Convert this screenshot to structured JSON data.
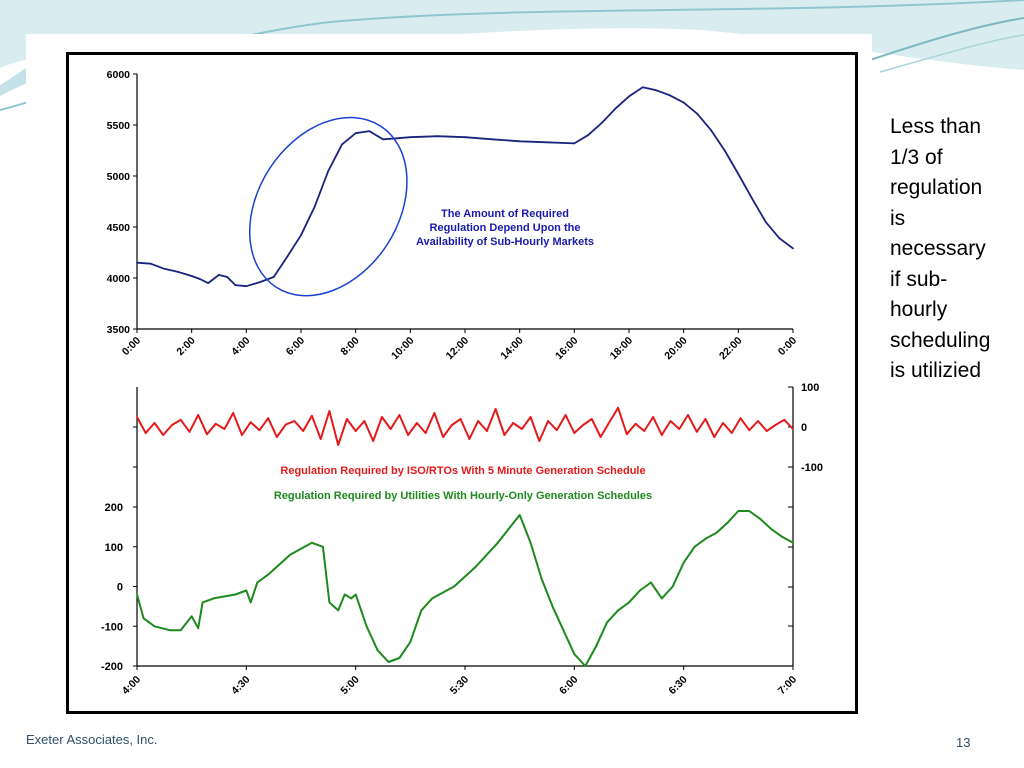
{
  "slide": {
    "side_note_lines": [
      "Less than",
      "1/3 of",
      "regulation",
      "is",
      "necessary",
      "if sub-",
      "hourly",
      "scheduling",
      "is utilizied"
    ],
    "footer_company": "Exeter Associates, Inc.",
    "page_number": "13",
    "colors": {
      "accent_teal": "#8fc6cf",
      "accent_light": "#d7ecef",
      "footer_text": "#2f4f6a"
    }
  },
  "chart_data": [
    {
      "type": "line",
      "title": "",
      "annotation_lines": [
        "The Amount of Required",
        "Regulation Depend Upon the",
        "Availability of Sub-Hourly Markets"
      ],
      "annotation_color": "#1a1aaa",
      "xlabel": "",
      "ylabel": "",
      "x_ticks": [
        "0:00",
        "2:00",
        "4:00",
        "6:00",
        "8:00",
        "10:00",
        "12:00",
        "14:00",
        "16:00",
        "18:00",
        "20:00",
        "22:00",
        "0:00"
      ],
      "y_ticks": [
        "3500",
        "4000",
        "4500",
        "5000",
        "5500",
        "6000"
      ],
      "ylim": [
        3500,
        6000
      ],
      "xlim_hours": [
        0,
        24
      ],
      "series": [
        {
          "color": "#1a237e",
          "x_hours": [
            0,
            0.5,
            1,
            1.5,
            2,
            2.3,
            2.6,
            3,
            3.3,
            3.6,
            4,
            4.5,
            5,
            5.5,
            6,
            6.5,
            7,
            7.5,
            8,
            8.5,
            9,
            9.5,
            10,
            11,
            12,
            13,
            14,
            15,
            16,
            16.5,
            17,
            17.5,
            18,
            18.5,
            19,
            19.5,
            20,
            20.5,
            21,
            21.5,
            22,
            22.5,
            23,
            23.5,
            24
          ],
          "values": [
            4150,
            4140,
            4090,
            4060,
            4020,
            3990,
            3950,
            4030,
            4010,
            3930,
            3920,
            3960,
            4010,
            4210,
            4420,
            4700,
            5050,
            5310,
            5420,
            5440,
            5360,
            5370,
            5380,
            5390,
            5380,
            5360,
            5340,
            5330,
            5320,
            5400,
            5520,
            5660,
            5780,
            5870,
            5840,
            5790,
            5720,
            5610,
            5450,
            5250,
            5020,
            4780,
            4550,
            4390,
            4290
          ]
        }
      ],
      "highlight_ellipse_color": "#1a3fd0"
    },
    {
      "type": "line",
      "title": "",
      "xlabel": "",
      "ylabel": "",
      "x_ticks": [
        "4:00",
        "4:30",
        "5:00",
        "5:30",
        "6:00",
        "6:30",
        "7:00"
      ],
      "xlim_hours": [
        4,
        7
      ],
      "y_ticks_left": [
        "-200",
        "-100",
        "0",
        "100",
        "200"
      ],
      "y_ticks_right": [
        "-100",
        "0",
        "100"
      ],
      "ylim_left": [
        -200,
        200
      ],
      "ylim_right": [
        -100,
        100
      ],
      "legend_entries": [
        {
          "text": "Regulation Required by ISO/RTOs With 5 Minute Generation Schedule",
          "color": "#e31b1b"
        },
        {
          "text": "Regulation Required by Utilities With Hourly-Only Generation Schedules",
          "color": "#1e8a1e"
        }
      ],
      "series": [
        {
          "color": "#e31b1b",
          "axis": "right",
          "x_hours": [
            4.0,
            4.04,
            4.08,
            4.12,
            4.16,
            4.2,
            4.24,
            4.28,
            4.32,
            4.36,
            4.4,
            4.44,
            4.48,
            4.52,
            4.56,
            4.6,
            4.64,
            4.68,
            4.72,
            4.76,
            4.8,
            4.84,
            4.88,
            4.92,
            4.96,
            5.0,
            5.04,
            5.08,
            5.12,
            5.16,
            5.2,
            5.24,
            5.28,
            5.32,
            5.36,
            5.4,
            5.44,
            5.48,
            5.52,
            5.56,
            5.6,
            5.64,
            5.68,
            5.72,
            5.76,
            5.8,
            5.84,
            5.88,
            5.92,
            5.96,
            6.0,
            6.04,
            6.08,
            6.12,
            6.16,
            6.2,
            6.24,
            6.28,
            6.32,
            6.36,
            6.4,
            6.44,
            6.48,
            6.52,
            6.56,
            6.6,
            6.64,
            6.68,
            6.72,
            6.76,
            6.8,
            6.84,
            6.88,
            6.92,
            6.96,
            7.0
          ],
          "values": [
            25,
            -15,
            10,
            -20,
            5,
            18,
            -12,
            30,
            -18,
            8,
            -5,
            35,
            -20,
            12,
            -8,
            22,
            -25,
            6,
            15,
            -10,
            28,
            -30,
            40,
            -45,
            20,
            -10,
            15,
            -35,
            25,
            -5,
            30,
            -20,
            10,
            -15,
            35,
            -25,
            5,
            20,
            -30,
            15,
            -10,
            45,
            -20,
            10,
            -5,
            25,
            -35,
            15,
            -8,
            30,
            -15,
            5,
            20,
            -25,
            12,
            48,
            -18,
            8,
            -10,
            25,
            -20,
            15,
            -5,
            30,
            -12,
            20,
            -25,
            10,
            -15,
            22,
            -8,
            15,
            -10,
            5,
            18,
            -5
          ]
        },
        {
          "color": "#1e8a1e",
          "axis": "left",
          "x_hours": [
            4.0,
            4.03,
            4.08,
            4.15,
            4.2,
            4.25,
            4.28,
            4.3,
            4.35,
            4.45,
            4.5,
            4.52,
            4.55,
            4.6,
            4.7,
            4.8,
            4.85,
            4.88,
            4.92,
            4.95,
            4.98,
            5.0,
            5.05,
            5.1,
            5.15,
            5.2,
            5.25,
            5.3,
            5.35,
            5.45,
            5.55,
            5.65,
            5.7,
            5.75,
            5.8,
            5.85,
            5.9,
            5.95,
            6.0,
            6.05,
            6.1,
            6.15,
            6.2,
            6.25,
            6.3,
            6.35,
            6.4,
            6.45,
            6.5,
            6.55,
            6.6,
            6.65,
            6.7,
            6.75,
            6.8,
            6.85,
            6.9,
            6.95,
            7.0
          ],
          "values": [
            -20,
            -80,
            -100,
            -110,
            -110,
            -75,
            -105,
            -40,
            -30,
            -20,
            -10,
            -40,
            10,
            30,
            80,
            110,
            100,
            -40,
            -60,
            -20,
            -30,
            -20,
            -100,
            -160,
            -190,
            -180,
            -140,
            -60,
            -30,
            0,
            50,
            110,
            145,
            180,
            110,
            20,
            -50,
            -110,
            -170,
            -200,
            -150,
            -90,
            -60,
            -40,
            -10,
            10,
            -30,
            0,
            60,
            100,
            120,
            135,
            160,
            190,
            190,
            170,
            145,
            125,
            110
          ]
        }
      ]
    }
  ]
}
